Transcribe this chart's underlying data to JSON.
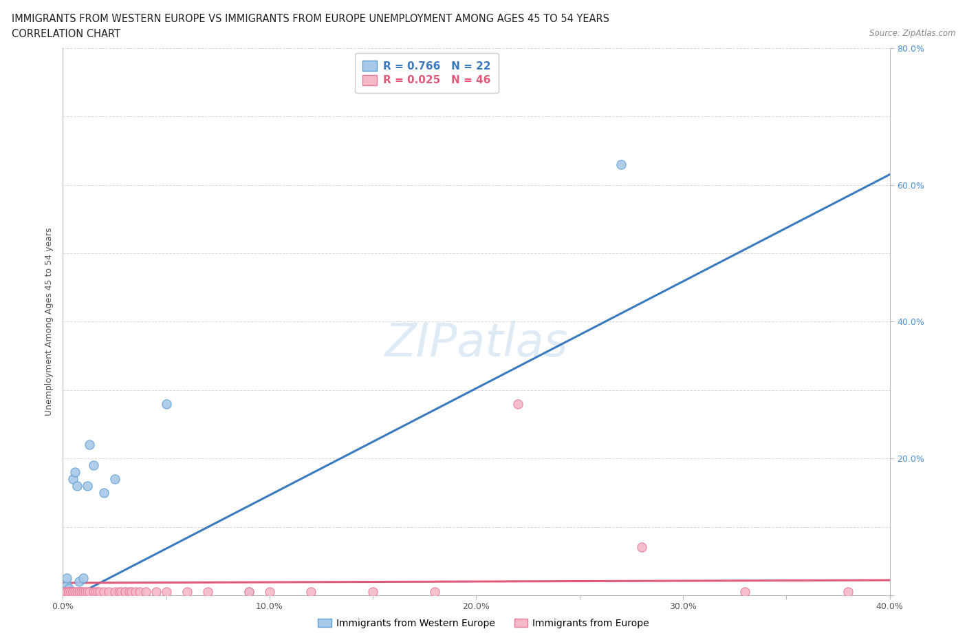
{
  "title_line1": "IMMIGRANTS FROM WESTERN EUROPE VS IMMIGRANTS FROM EUROPE UNEMPLOYMENT AMONG AGES 45 TO 54 YEARS",
  "title_line2": "CORRELATION CHART",
  "source_text": "Source: ZipAtlas.com",
  "ylabel": "Unemployment Among Ages 45 to 54 years",
  "xlim": [
    0.0,
    0.4
  ],
  "ylim": [
    0.0,
    0.8
  ],
  "blue_scatter_x": [
    0.001,
    0.002,
    0.002,
    0.003,
    0.003,
    0.004,
    0.004,
    0.005,
    0.006,
    0.007,
    0.008,
    0.009,
    0.01,
    0.012,
    0.013,
    0.015,
    0.02,
    0.025,
    0.03,
    0.05,
    0.09,
    0.27
  ],
  "blue_scatter_y": [
    0.005,
    0.015,
    0.025,
    0.005,
    0.01,
    0.005,
    0.005,
    0.17,
    0.18,
    0.16,
    0.02,
    0.005,
    0.025,
    0.16,
    0.22,
    0.19,
    0.15,
    0.17,
    0.005,
    0.28,
    0.005,
    0.63
  ],
  "pink_scatter_x": [
    0.001,
    0.001,
    0.002,
    0.002,
    0.003,
    0.003,
    0.004,
    0.004,
    0.005,
    0.005,
    0.006,
    0.007,
    0.008,
    0.009,
    0.01,
    0.011,
    0.012,
    0.013,
    0.015,
    0.016,
    0.017,
    0.018,
    0.02,
    0.022,
    0.025,
    0.027,
    0.028,
    0.03,
    0.032,
    0.033,
    0.035,
    0.037,
    0.04,
    0.045,
    0.05,
    0.06,
    0.07,
    0.09,
    0.1,
    0.12,
    0.15,
    0.18,
    0.22,
    0.28,
    0.33,
    0.38
  ],
  "pink_scatter_y": [
    0.005,
    0.005,
    0.005,
    0.005,
    0.005,
    0.005,
    0.005,
    0.005,
    0.005,
    0.005,
    0.005,
    0.005,
    0.005,
    0.005,
    0.005,
    0.005,
    0.005,
    0.005,
    0.005,
    0.005,
    0.005,
    0.005,
    0.005,
    0.005,
    0.005,
    0.005,
    0.005,
    0.005,
    0.005,
    0.005,
    0.005,
    0.005,
    0.005,
    0.005,
    0.005,
    0.005,
    0.005,
    0.005,
    0.005,
    0.005,
    0.005,
    0.005,
    0.28,
    0.07,
    0.005,
    0.005
  ],
  "blue_line_x": [
    0.0,
    0.4
  ],
  "blue_line_y": [
    -0.01,
    0.615
  ],
  "pink_line_x": [
    0.0,
    0.4
  ],
  "pink_line_y": [
    0.018,
    0.022
  ],
  "blue_R": "0.766",
  "blue_N": "22",
  "pink_R": "0.025",
  "pink_N": "46",
  "blue_scatter_color": "#a8c8e8",
  "blue_scatter_edge": "#5a9fd4",
  "pink_scatter_color": "#f5b8c8",
  "pink_scatter_edge": "#e87a9a",
  "blue_line_color": "#3a7abf",
  "pink_line_color": "#e05a7a",
  "legend_label_blue": "Immigrants from Western Europe",
  "legend_label_pink": "Immigrants from Europe",
  "background_color": "#ffffff",
  "grid_color": "#d0d0d0",
  "right_axis_color": "#4a90d9",
  "watermark_color": "#c8dff0"
}
